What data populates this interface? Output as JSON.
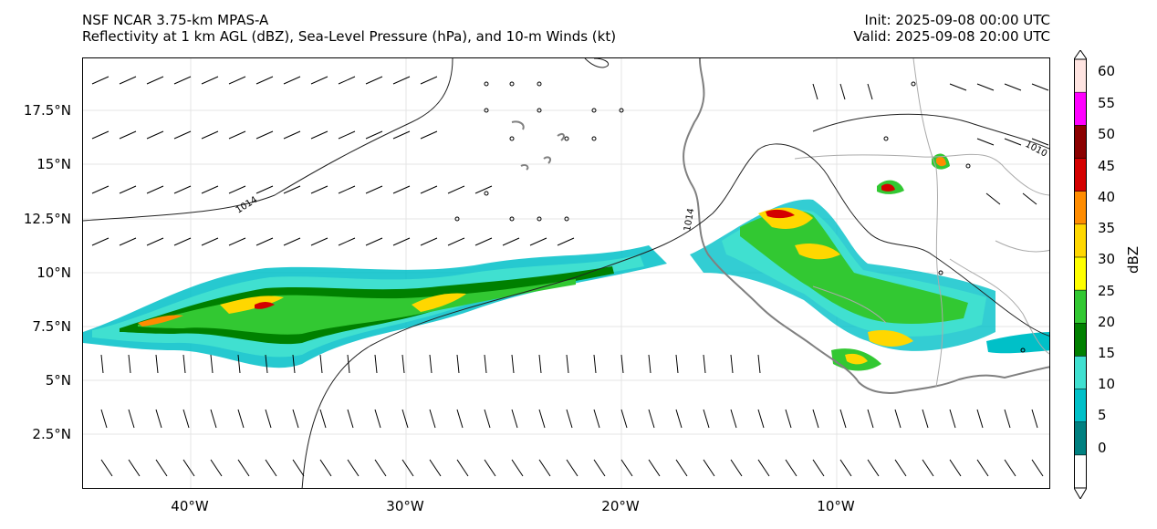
{
  "header": {
    "model": "NSF NCAR 3.75-km MPAS-A",
    "fields": "Reflectivity at 1 km AGL (dBZ), Sea-Level Pressure (hPa), and 10-m Winds (kt)",
    "init": "Init: 2025-09-08 00:00 UTC",
    "valid": "Valid: 2025-09-08 20:00 UTC"
  },
  "map": {
    "lat_labels": [
      "17.5°N",
      "15°N",
      "12.5°N",
      "10°N",
      "7.5°N",
      "5°N",
      "2.5°N"
    ],
    "lon_labels": [
      "40°W",
      "30°W",
      "20°W",
      "10°W"
    ],
    "isobar_labels": [
      "1014",
      "1014",
      "1010"
    ],
    "colors": {
      "coast": "#808080",
      "isobar": "#222222",
      "border": "#aaaaaa"
    }
  },
  "colorbar": {
    "label": "dBZ",
    "ticks": [
      "0",
      "5",
      "10",
      "15",
      "20",
      "25",
      "30",
      "35",
      "40",
      "45",
      "50",
      "55",
      "60"
    ],
    "colors": [
      "#ffffff",
      "#008080",
      "#00c0c8",
      "#40e0d0",
      "#008000",
      "#32c832",
      "#ffff00",
      "#ffd700",
      "#ff8c00",
      "#d40000",
      "#8b0000",
      "#ff00ff",
      "#ffe4e1"
    ]
  }
}
